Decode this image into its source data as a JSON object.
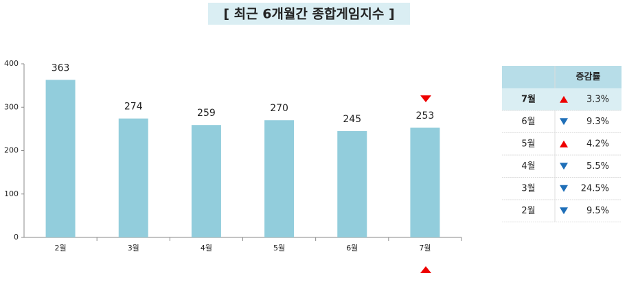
{
  "chart_data": {
    "type": "bar",
    "title": "[ 최근 6개월간 종합게임지수 ]",
    "categories": [
      "2월",
      "3월",
      "4월",
      "5월",
      "6월",
      "7월"
    ],
    "values": [
      363,
      274,
      259,
      270,
      245,
      253
    ],
    "color": "#92cddc",
    "ylim": [
      0,
      400
    ],
    "yticks": [
      0,
      100,
      200,
      300,
      400
    ]
  },
  "table": {
    "header": "증감률",
    "rows": [
      {
        "label": "7월",
        "trend": "up",
        "change": "3.3%"
      },
      {
        "label": "6월",
        "trend": "down",
        "change": "9.3%"
      },
      {
        "label": "5월",
        "trend": "up",
        "change": "4.2%"
      },
      {
        "label": "4월",
        "trend": "down",
        "change": "5.5%"
      },
      {
        "label": "3월",
        "trend": "down",
        "change": "24.5%"
      },
      {
        "label": "2월",
        "trend": "down",
        "change": "9.5%"
      }
    ]
  }
}
